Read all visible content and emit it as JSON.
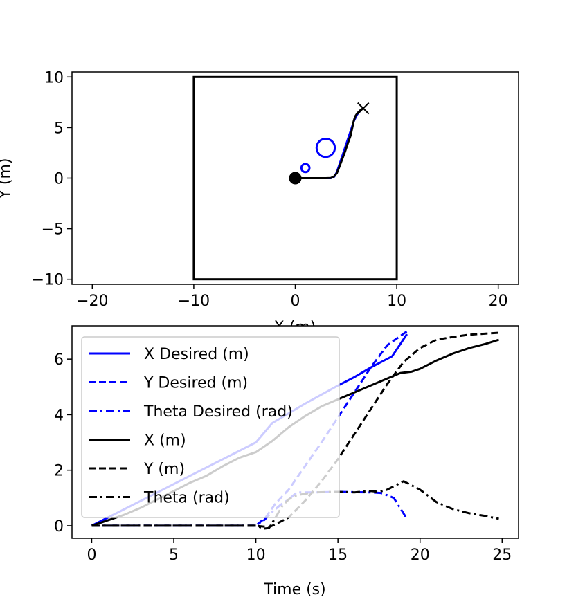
{
  "chart_data": [
    {
      "type": "scatter",
      "title": "",
      "xlabel": "X (m)",
      "ylabel": "Y (m)",
      "xlim": [
        -22,
        22
      ],
      "ylim": [
        -10.5,
        10.5
      ],
      "xticks": [
        -20,
        -10,
        0,
        10,
        20
      ],
      "yticks": [
        -10,
        -5,
        0,
        5,
        10
      ],
      "xtick_labels": [
        "−20",
        "−10",
        "0",
        "10",
        "20"
      ],
      "ytick_labels": [
        "−10",
        "−5",
        "0",
        "5",
        "10"
      ],
      "boundary": {
        "x": [
          -10,
          10
        ],
        "y": [
          -10,
          10
        ],
        "color": "#000000"
      },
      "obstacles": [
        {
          "x": 1.0,
          "y": 1.0,
          "r": 0.4,
          "color": "#0000ff"
        },
        {
          "x": 3.0,
          "y": 3.0,
          "r": 0.9,
          "color": "#0000ff"
        }
      ],
      "start": {
        "x": 0,
        "y": 0,
        "color": "#000000"
      },
      "goal": {
        "x": 6.7,
        "y": 6.9,
        "color": "#000000"
      },
      "series": [
        {
          "color": "#0000ff",
          "x": [
            0,
            3.5,
            3.85,
            4.1,
            4.4,
            4.8,
            5.2,
            5.5,
            5.8,
            6.1,
            6.35
          ],
          "y": [
            0,
            0,
            0.15,
            0.6,
            1.5,
            2.7,
            3.9,
            4.8,
            5.7,
            6.3,
            6.6
          ]
        },
        {
          "color": "#000000",
          "x": [
            0,
            3.0,
            3.5,
            3.8,
            4.1,
            4.3,
            4.6,
            4.9,
            5.2,
            5.45,
            5.6,
            5.75,
            5.9,
            6.1,
            6.3,
            6.45,
            6.6,
            6.7
          ],
          "y": [
            0,
            0,
            0.02,
            0.15,
            0.5,
            1.0,
            1.8,
            2.6,
            3.5,
            4.2,
            4.9,
            5.6,
            6.1,
            6.4,
            6.6,
            6.75,
            6.85,
            6.9
          ]
        }
      ]
    },
    {
      "type": "line",
      "title": "",
      "xlabel": "Time (s)",
      "ylabel": "",
      "xlim": [
        -1.2,
        26
      ],
      "ylim": [
        -0.45,
        7.2
      ],
      "xticks": [
        0,
        5,
        10,
        15,
        20,
        25
      ],
      "yticks": [
        0,
        2,
        4,
        6
      ],
      "xtick_labels": [
        "0",
        "5",
        "10",
        "15",
        "20",
        "25"
      ],
      "ytick_labels": [
        "0",
        "2",
        "4",
        "6"
      ],
      "legend_position": "top-left",
      "series": [
        {
          "name": "X Desired (m)",
          "color": "#0000ff",
          "style": "solid",
          "x": [
            0,
            2,
            4,
            6,
            8,
            10,
            11,
            13,
            15,
            16,
            17,
            18.3,
            19.2
          ],
          "y": [
            0,
            0.6,
            1.2,
            1.8,
            2.4,
            3.0,
            3.7,
            4.4,
            5.05,
            5.35,
            5.7,
            6.1,
            6.9
          ]
        },
        {
          "name": "Y Desired (m)",
          "color": "#0000ff",
          "style": "dashed",
          "x": [
            0,
            5,
            10,
            10.6,
            11.2,
            12,
            14,
            16,
            17,
            18,
            19.2
          ],
          "y": [
            0,
            0,
            0,
            0.3,
            0.8,
            1.3,
            3.0,
            4.8,
            5.7,
            6.5,
            7.0
          ]
        },
        {
          "name": "Theta Desired (rad)",
          "color": "#0000ff",
          "style": "dashdot",
          "x": [
            0,
            10,
            10.1,
            10.5,
            11,
            11.5,
            12,
            12.3,
            12.5,
            13.5,
            15,
            16,
            17,
            17.6,
            18,
            18.4,
            19.2
          ],
          "y": [
            0,
            0,
            0.05,
            0.2,
            0.5,
            0.75,
            0.95,
            1.1,
            1.2,
            1.2,
            1.22,
            1.21,
            1.2,
            1.18,
            1.1,
            1.0,
            0.25
          ]
        },
        {
          "name": "X (m)",
          "color": "#000000",
          "style": "solid",
          "x": [
            0,
            1,
            2,
            3,
            4,
            5,
            6,
            7,
            8,
            9,
            10,
            11,
            12,
            13,
            14,
            15,
            16,
            17,
            18,
            18.8,
            19.5,
            20,
            21,
            22,
            23,
            24,
            24.8
          ],
          "y": [
            0,
            0.2,
            0.4,
            0.65,
            0.95,
            1.25,
            1.55,
            1.8,
            2.15,
            2.45,
            2.65,
            3.05,
            3.55,
            3.95,
            4.3,
            4.55,
            4.8,
            5.05,
            5.3,
            5.5,
            5.55,
            5.65,
            5.95,
            6.2,
            6.4,
            6.55,
            6.7
          ]
        },
        {
          "name": "Y (m)",
          "color": "#000000",
          "style": "dashed",
          "x": [
            0,
            5,
            10,
            10.8,
            11.2,
            12,
            13,
            14,
            15,
            16,
            17,
            18,
            19,
            20,
            21,
            22,
            23,
            24,
            24.8
          ],
          "y": [
            0,
            0,
            0,
            -0.05,
            0.05,
            0.3,
            0.9,
            1.6,
            2.4,
            3.3,
            4.2,
            5.1,
            5.9,
            6.4,
            6.7,
            6.8,
            6.88,
            6.92,
            6.95
          ]
        },
        {
          "name": "Theta (rad)",
          "color": "#000000",
          "style": "dashdot",
          "x": [
            0,
            5,
            10,
            10.5,
            10.8,
            11.1,
            11.6,
            12,
            12.5,
            13.5,
            15,
            16,
            16.5,
            17,
            17.5,
            18,
            18.5,
            19,
            20,
            21,
            22,
            23,
            24,
            24.8
          ],
          "y": [
            0,
            0,
            0,
            -0.1,
            -0.08,
            0.2,
            0.7,
            0.95,
            1.1,
            1.2,
            1.22,
            1.2,
            1.23,
            1.25,
            1.22,
            1.3,
            1.45,
            1.6,
            1.3,
            0.85,
            0.6,
            0.45,
            0.35,
            0.25
          ]
        }
      ]
    }
  ]
}
